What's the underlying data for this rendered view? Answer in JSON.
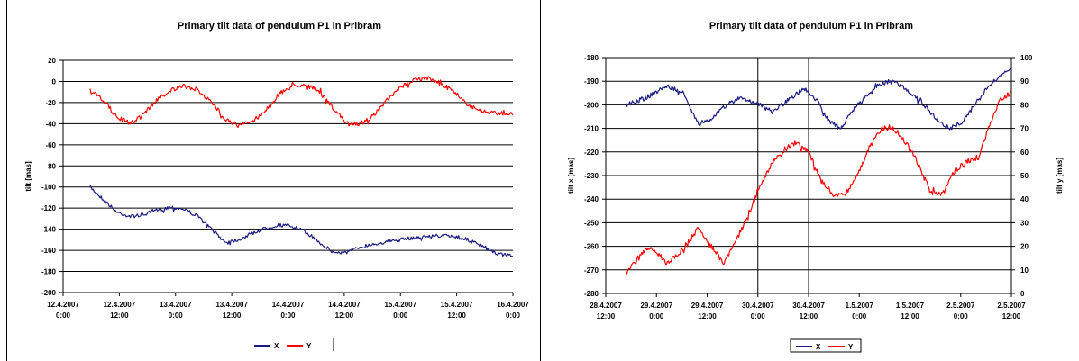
{
  "chart_data": [
    {
      "type": "line",
      "title": "Primary tilt data of pendulum P1 in Pribram",
      "ylabel": "tilt [mas]",
      "ylim": [
        -200,
        20
      ],
      "yticks": [
        "20",
        "0",
        "-20",
        "-40",
        "-60",
        "-80",
        "-100",
        "-120",
        "-140",
        "-160",
        "-180",
        "-200"
      ],
      "xticks": [
        [
          "12.4.2007",
          "0:00"
        ],
        [
          "12.4.2007",
          "12:00"
        ],
        [
          "13.4.2007",
          "0:00"
        ],
        [
          "13.4.2007",
          "12:00"
        ],
        [
          "14.4.2007",
          "0:00"
        ],
        [
          "14.4.2007",
          "12:00"
        ],
        [
          "15.4.2007",
          "0:00"
        ],
        [
          "15.4.2007",
          "12:00"
        ],
        [
          "16.4.2007",
          "0:00"
        ]
      ],
      "grid": "horizontal",
      "legend_position": "bottom",
      "series": [
        {
          "name": "X",
          "color": "#1a1a80",
          "x": [
            6,
            9,
            12,
            15,
            18,
            21,
            24,
            27,
            30,
            33,
            36,
            39,
            42,
            45,
            48,
            51,
            54,
            57,
            60,
            63,
            66,
            69,
            72,
            75,
            78,
            81,
            84,
            87,
            90,
            93,
            96,
            100
          ],
          "y": [
            -100,
            -112,
            -124,
            -128,
            -126,
            -122,
            -119,
            -121,
            -128,
            -140,
            -152,
            -150,
            -144,
            -139,
            -136,
            -137,
            -143,
            -152,
            -162,
            -162,
            -157,
            -154,
            -152,
            -150,
            -148,
            -147,
            -146,
            -147,
            -150,
            -156,
            -163,
            -165
          ]
        },
        {
          "name": "Y",
          "color": "#ff0000",
          "x": [
            6,
            9,
            12,
            15,
            18,
            21,
            24,
            27,
            30,
            33,
            36,
            39,
            42,
            45,
            48,
            51,
            54,
            57,
            60,
            63,
            66,
            69,
            72,
            75,
            78,
            81,
            84,
            87,
            90,
            93,
            96,
            100
          ],
          "y": [
            -9,
            -18,
            -34,
            -40,
            -30,
            -17,
            -8,
            -5,
            -8,
            -20,
            -35,
            -42,
            -38,
            -28,
            -12,
            -4,
            -3,
            -10,
            -25,
            -40,
            -40,
            -33,
            -18,
            -6,
            2,
            3,
            -2,
            -10,
            -22,
            -28,
            -30,
            -30
          ]
        }
      ]
    },
    {
      "type": "line",
      "title": "Primary tilt data of pendulum P1 in Pribram",
      "ylabel": "tilt x [mas]",
      "y2label": "tilt y [mas]",
      "ylim": [
        -280,
        -180
      ],
      "y2lim": [
        0,
        100
      ],
      "yticks": [
        "-180",
        "-190",
        "-200",
        "-210",
        "-220",
        "-230",
        "-240",
        "-250",
        "-260",
        "-270",
        "-280"
      ],
      "y2ticks": [
        "100",
        "90",
        "80",
        "70",
        "60",
        "50",
        "40",
        "30",
        "20",
        "10",
        "0"
      ],
      "xticks": [
        [
          "28.4.2007",
          "12:00"
        ],
        [
          "29.4.2007",
          "0:00"
        ],
        [
          "29.4.2007",
          "12:00"
        ],
        [
          "30.4.2007",
          "0:00"
        ],
        [
          "30.4.2007",
          "12:00"
        ],
        [
          "1.5.2007",
          "0:00"
        ],
        [
          "1.5.2007",
          "12:00"
        ],
        [
          "2.5.2007",
          "0:00"
        ],
        [
          "2.5.2007",
          "12:00"
        ]
      ],
      "grid": "both",
      "legend_position": "bottom",
      "series": [
        {
          "name": "X",
          "color": "#1a1a80",
          "axis": "left",
          "x": [
            5,
            10,
            15,
            19,
            21,
            23,
            26,
            29,
            33,
            37,
            41,
            45,
            49,
            52,
            55,
            58,
            61,
            64,
            67,
            70,
            73,
            76,
            79,
            82,
            85,
            88,
            91,
            94,
            97,
            100
          ],
          "y": [
            -200,
            -197,
            -192,
            -195,
            -202,
            -208,
            -206,
            -201,
            -197,
            -199,
            -203,
            -198,
            -193,
            -198,
            -207,
            -210,
            -202,
            -197,
            -192,
            -190,
            -192,
            -196,
            -201,
            -207,
            -210,
            -207,
            -200,
            -193,
            -188,
            -185
          ]
        },
        {
          "name": "Y",
          "color": "#ff0000",
          "axis": "right",
          "x": [
            5,
            8,
            11,
            15,
            18,
            20,
            23,
            26,
            29,
            32,
            35,
            38,
            41,
            44,
            47,
            50,
            53,
            56,
            59,
            62,
            65,
            68,
            71,
            74,
            77,
            80,
            83,
            86,
            89,
            92,
            95,
            97,
            100
          ],
          "y": [
            8,
            15,
            20,
            13,
            17,
            21,
            28,
            20,
            13,
            22,
            33,
            45,
            55,
            61,
            64,
            60,
            48,
            42,
            42,
            50,
            62,
            70,
            70,
            64,
            55,
            43,
            42,
            52,
            56,
            58,
            73,
            82,
            85
          ]
        }
      ]
    }
  ]
}
